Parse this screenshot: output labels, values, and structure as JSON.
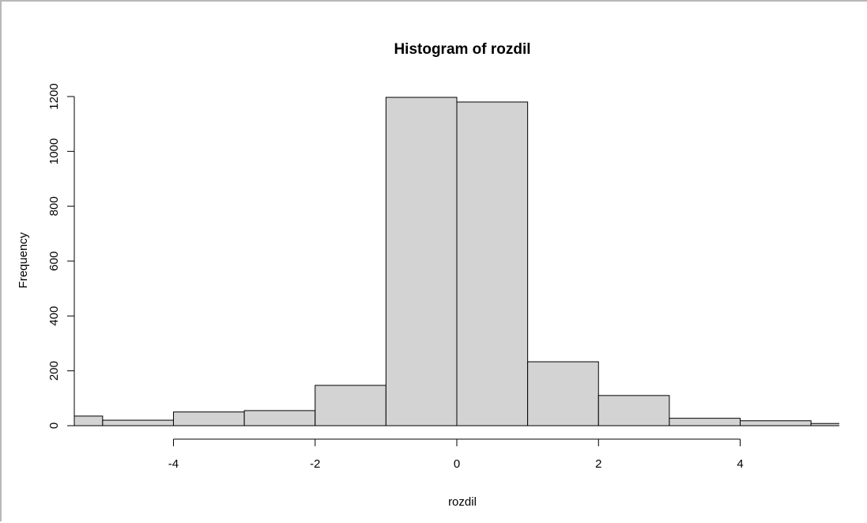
{
  "chart_data": {
    "type": "bar",
    "title": "Histogram of rozdil",
    "xlabel": "rozdil",
    "ylabel": "Frequency",
    "bins": [
      {
        "from": -6,
        "to": -5,
        "value": 35
      },
      {
        "from": -5,
        "to": -4,
        "value": 20
      },
      {
        "from": -4,
        "to": -3,
        "value": 50
      },
      {
        "from": -3,
        "to": -2,
        "value": 55
      },
      {
        "from": -2,
        "to": -1,
        "value": 147
      },
      {
        "from": -1,
        "to": 0,
        "value": 1197
      },
      {
        "from": 0,
        "to": 1,
        "value": 1180
      },
      {
        "from": 1,
        "to": 2,
        "value": 233
      },
      {
        "from": 2,
        "to": 3,
        "value": 110
      },
      {
        "from": 3,
        "to": 4,
        "value": 27
      },
      {
        "from": 4,
        "to": 5,
        "value": 18
      },
      {
        "from": 5,
        "to": 6,
        "value": 8
      }
    ],
    "xlim": [
      -5.4,
      5.4
    ],
    "ylim": [
      0,
      1200
    ],
    "x_ticks": [
      -4,
      -2,
      0,
      2,
      4
    ],
    "x_tick_labels": [
      "-4",
      "-2",
      "0",
      "2",
      "4"
    ],
    "y_ticks": [
      0,
      200,
      400,
      600,
      800,
      1000,
      1200
    ],
    "y_tick_labels": [
      "0",
      "200",
      "400",
      "600",
      "800",
      "1000",
      "1200"
    ],
    "bar_color": "#d3d3d3",
    "border_color": "#000000",
    "grid": false
  }
}
